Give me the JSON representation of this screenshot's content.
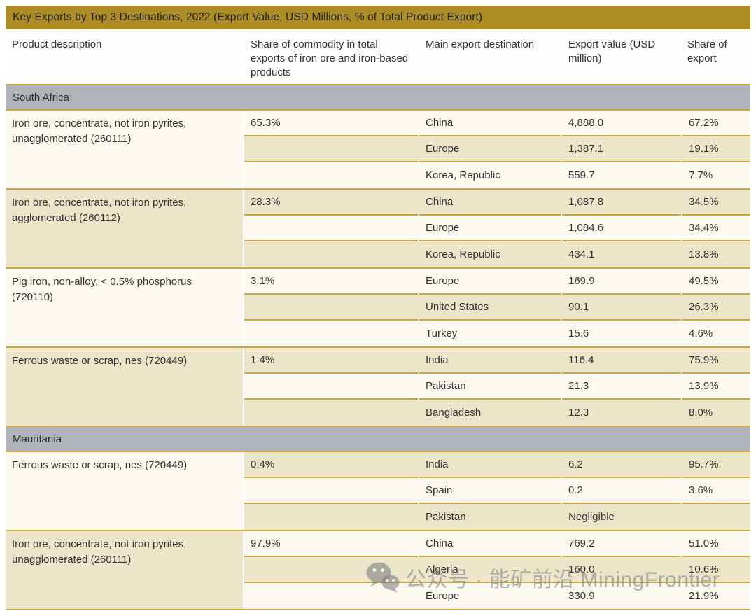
{
  "title": "Key Exports by Top 3 Destinations, 2022 (Export Value, USD Millions, % of Total Product Export)",
  "columns": [
    "Product description",
    "Share of commodity in total exports of iron ore and iron-based products",
    "Main export destination",
    "Export value (USD million)",
    "Share of export"
  ],
  "sections": [
    {
      "name": "South Africa",
      "groups": [
        {
          "product": "Iron ore, concentrate, not iron pyrites, unagglomerated (260111)",
          "share": "65.3%",
          "product_shade": "cream",
          "stripes": [
            "cream",
            "beige",
            "cream"
          ],
          "rows": [
            {
              "destination": "China",
              "value": "4,888.0",
              "share_of_export": "67.2%"
            },
            {
              "destination": "Europe",
              "value": "1,387.1",
              "share_of_export": "19.1%"
            },
            {
              "destination": "Korea, Republic",
              "value": "559.7",
              "share_of_export": "7.7%"
            }
          ]
        },
        {
          "product": "Iron ore, concentrate, not iron pyrites, agglomerated (260112)",
          "share": "28.3%",
          "product_shade": "beige",
          "stripes": [
            "beige",
            "cream",
            "beige"
          ],
          "rows": [
            {
              "destination": "China",
              "value": "1,087.8",
              "share_of_export": "34.5%"
            },
            {
              "destination": "Europe",
              "value": "1,084.6",
              "share_of_export": "34.4%"
            },
            {
              "destination": "Korea, Republic",
              "value": "434.1",
              "share_of_export": "13.8%"
            }
          ]
        },
        {
          "product": "Pig iron, non-alloy, < 0.5% phosphorus (720110)",
          "share": "3.1%",
          "product_shade": "cream",
          "stripes": [
            "cream",
            "beige",
            "cream"
          ],
          "rows": [
            {
              "destination": "Europe",
              "value": "169.9",
              "share_of_export": "49.5%"
            },
            {
              "destination": "United States",
              "value": "90.1",
              "share_of_export": "26.3%"
            },
            {
              "destination": "Turkey",
              "value": "15.6",
              "share_of_export": "4.6%"
            }
          ]
        },
        {
          "product": "Ferrous waste or scrap, nes (720449)",
          "share": "1.4%",
          "product_shade": "beige",
          "stripes": [
            "beige",
            "cream",
            "beige"
          ],
          "rows": [
            {
              "destination": "India",
              "value": "116.4",
              "share_of_export": "75.9%"
            },
            {
              "destination": "Pakistan",
              "value": "21.3",
              "share_of_export": "13.9%"
            },
            {
              "destination": "Bangladesh",
              "value": "12.3",
              "share_of_export": "8.0%"
            }
          ]
        }
      ]
    },
    {
      "name": "Mauritania",
      "groups": [
        {
          "product": "Ferrous waste or scrap, nes (720449)",
          "share": "0.4%",
          "product_shade": "cream",
          "stripes": [
            "beige",
            "cream",
            "beige"
          ],
          "rows": [
            {
              "destination": "India",
              "value": "6.2",
              "share_of_export": "95.7%"
            },
            {
              "destination": "Spain",
              "value": "0.2",
              "share_of_export": "3.6%"
            },
            {
              "destination": "Pakistan",
              "value": "Negligible",
              "share_of_export": ""
            }
          ]
        },
        {
          "product": "Iron ore, concentrate, not iron pyrites, unagglomerated (260111)",
          "share": "97.9%",
          "product_shade": "beige",
          "stripes": [
            "cream",
            "beige",
            "cream"
          ],
          "rows": [
            {
              "destination": "China",
              "value": "769.2",
              "share_of_export": "51.0%"
            },
            {
              "destination": "Algeria",
              "value": "160.0",
              "share_of_export": "10.6%"
            },
            {
              "destination": "Europe",
              "value": "330.9",
              "share_of_export": "21.9%"
            }
          ]
        }
      ]
    }
  ],
  "watermark": {
    "icon": "wechat-logo",
    "text": "公众号 · 能矿前沿 MiningFrontier"
  },
  "colors": {
    "title_bar": "#ab8c25",
    "section_bar": "#b1b3bb",
    "row_cream": "#fbf9f0",
    "row_beige": "#ece5ca",
    "separator_line": "#c9a63e",
    "header_bg": "#fdfdfb",
    "text": "#333333"
  }
}
